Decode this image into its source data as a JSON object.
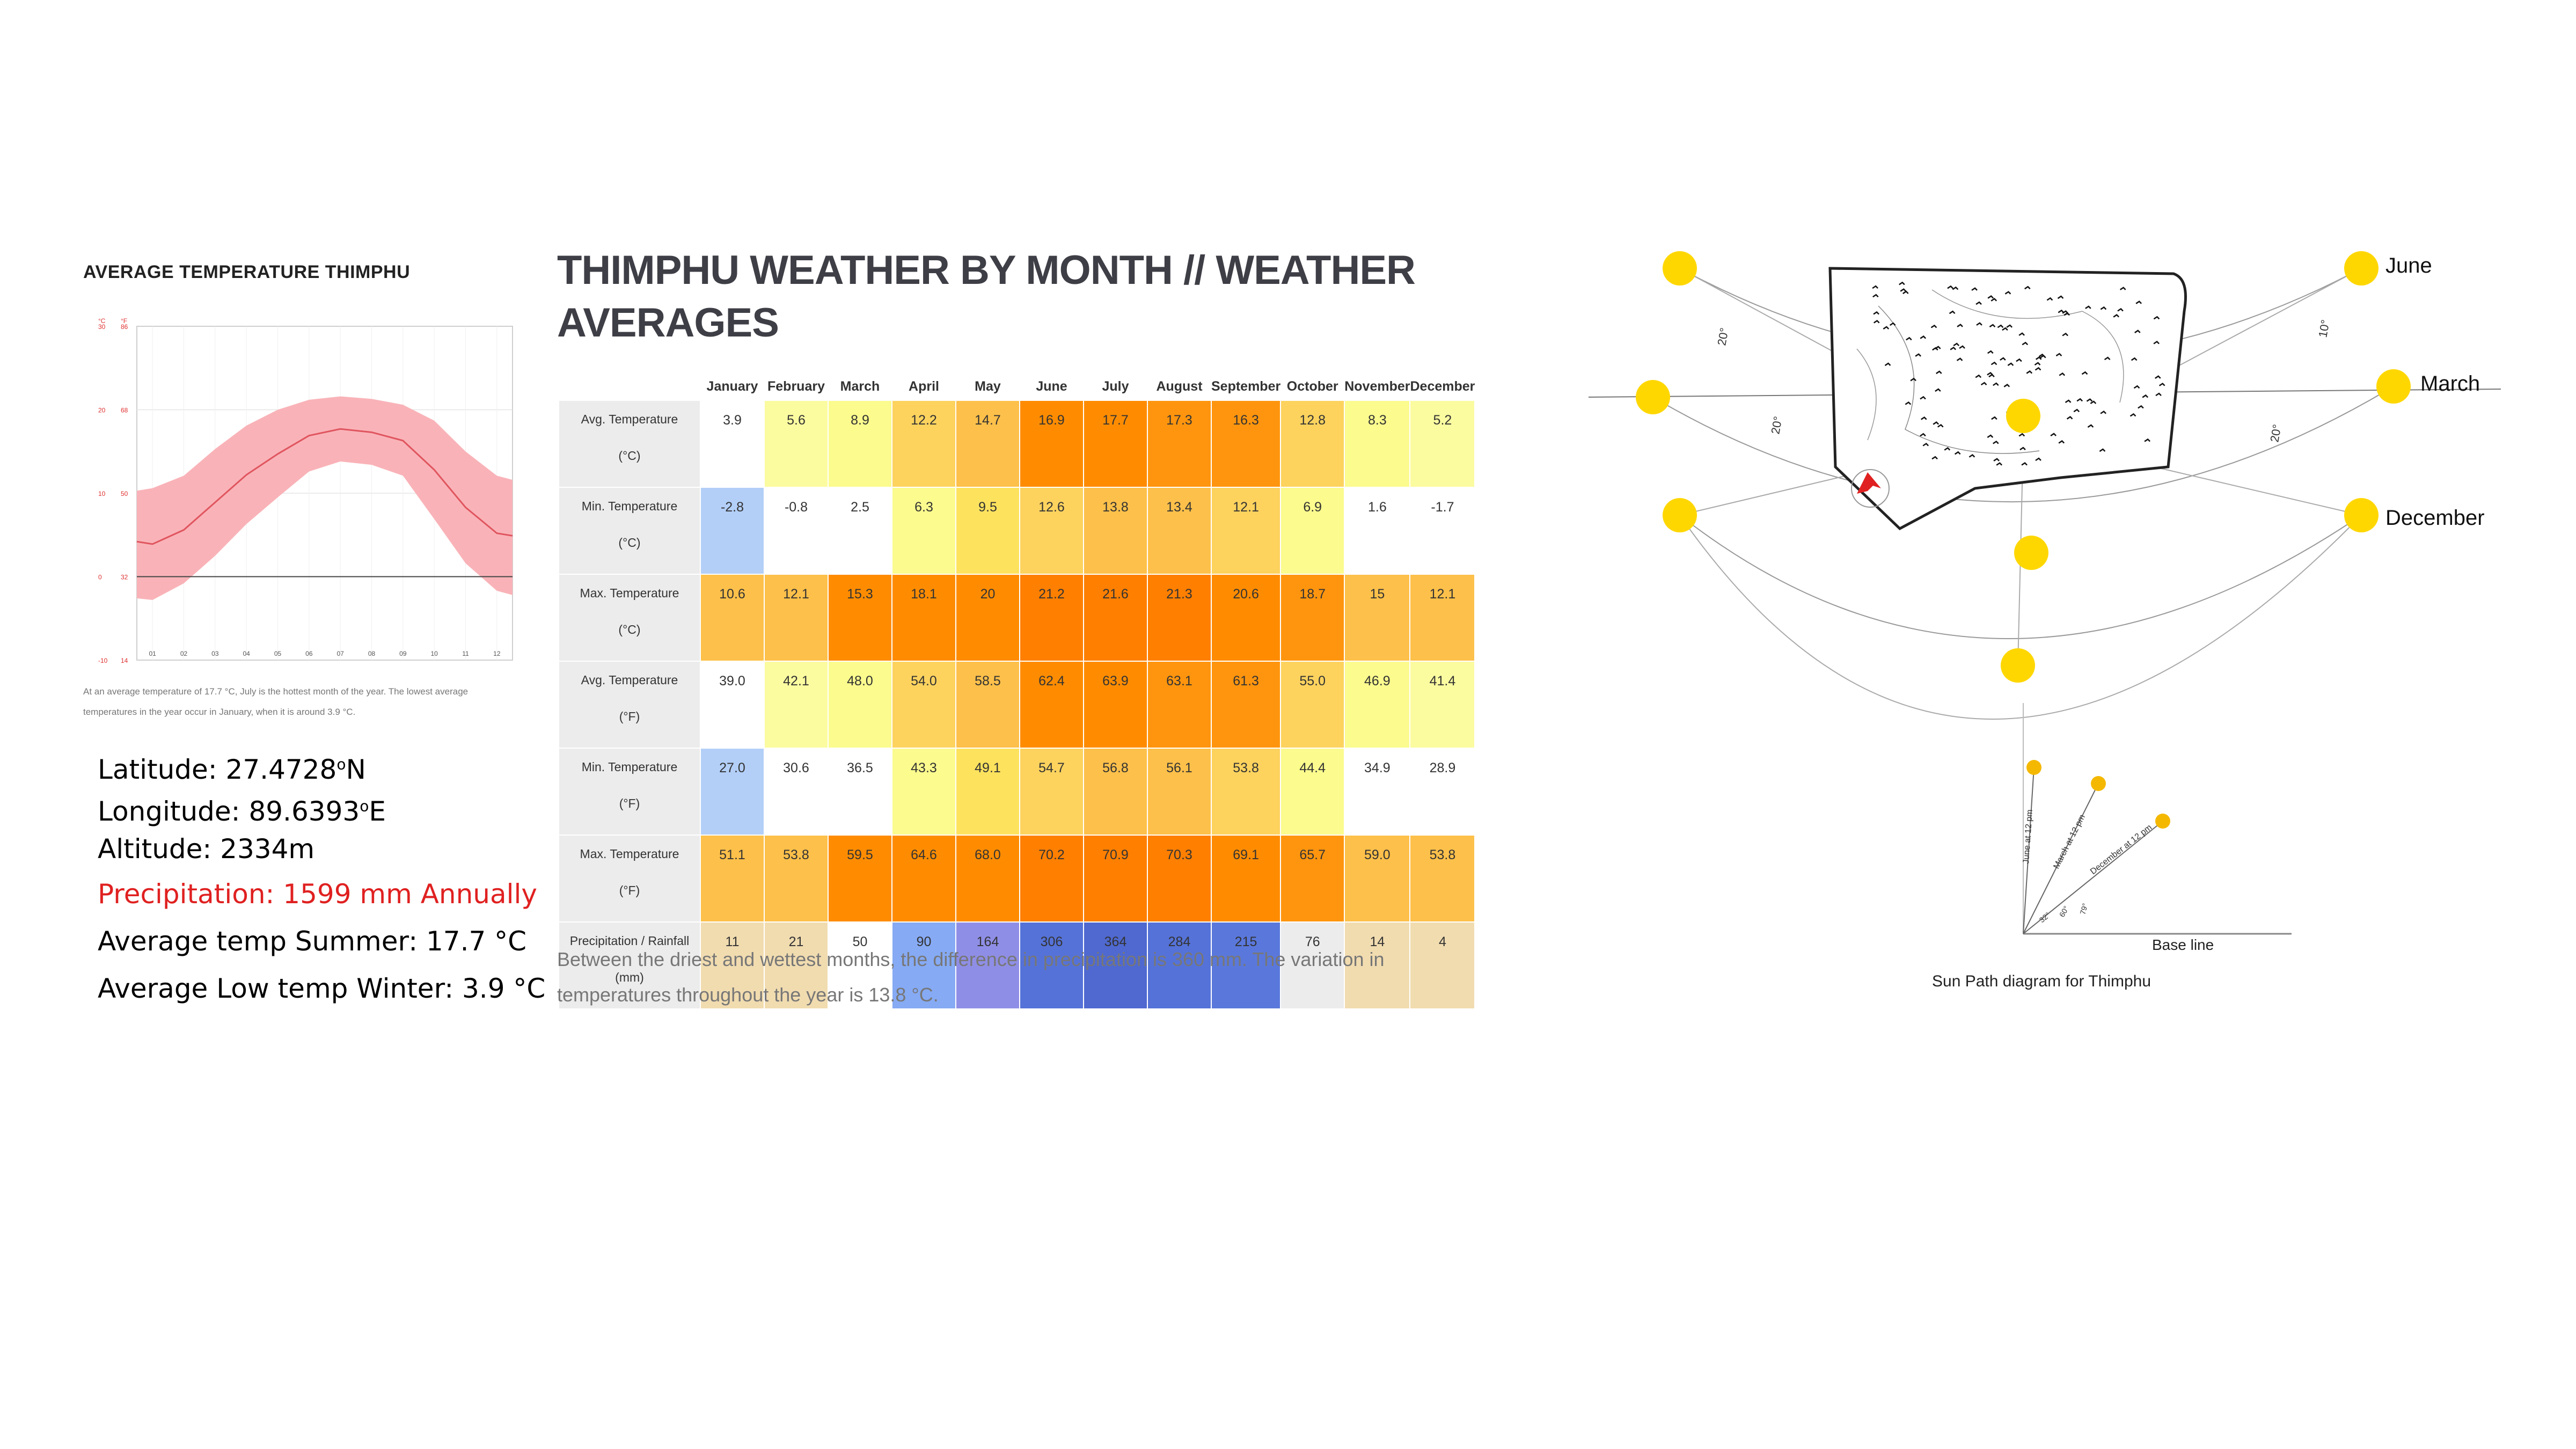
{
  "avg_chart": {
    "title": "AVERAGE TEMPERATURE THIMPHU",
    "left_axis_unit": "°C",
    "right_axis_unit": "°F",
    "y_ticks_c": [
      "30",
      "20",
      "10",
      "0",
      "-10"
    ],
    "y_ticks_f": [
      "86",
      "68",
      "50",
      "32",
      "14"
    ],
    "x_ticks": [
      "01",
      "02",
      "03",
      "04",
      "05",
      "06",
      "07",
      "08",
      "09",
      "10",
      "11",
      "12"
    ],
    "caption_line1": "At an average temperature of 17.7 °C, July is the hottest month of the year. The lowest average",
    "caption_line2": "temperatures in the year occur in January, when it is around 3.9 °C.",
    "band_color": "#f9b3b8",
    "line_color": "#e0555f"
  },
  "chart_data": {
    "type": "area",
    "x": [
      "01",
      "02",
      "03",
      "04",
      "05",
      "06",
      "07",
      "08",
      "09",
      "10",
      "11",
      "12"
    ],
    "ylim": [
      -10,
      30
    ],
    "series": [
      {
        "values": [
          3.9,
          5.6,
          8.9,
          12.2,
          14.7,
          16.9,
          17.7,
          17.3,
          16.3,
          12.8,
          8.3,
          5.2
        ]
      },
      {
        "values": [
          -2.8,
          -0.8,
          2.5,
          6.3,
          9.5,
          12.6,
          13.8,
          13.4,
          12.1,
          6.9,
          1.6,
          -1.7
        ]
      },
      {
        "values": [
          10.6,
          12.1,
          15.3,
          18.1,
          20,
          21.2,
          21.6,
          21.3,
          20.6,
          18.7,
          15,
          12.1
        ]
      }
    ]
  },
  "info": {
    "latitude_label": "Latitude:",
    "latitude_value": "27.4728",
    "longitude_label": "Longitude:",
    "longitude_value": "89.6393",
    "altitude_label": "Altitude:",
    "altitude_value": "2334m",
    "degree_sup": "o",
    "lat_dir": "N",
    "lon_dir": "E",
    "precip_label": "Precipitation:",
    "precip_value": "1599 mm Annually",
    "summer_label": "Average temp Summer:",
    "summer_value": "17.7 °C",
    "winter_label": "Average Low temp Winter:",
    "winter_value": "3.9 °C"
  },
  "table": {
    "title_line1": "THIMPHU WEATHER BY MONTH // WEATHER",
    "title_line2": "AVERAGES",
    "months": [
      "January",
      "February",
      "March",
      "April",
      "May",
      "June",
      "July",
      "August",
      "September",
      "October",
      "November",
      "December"
    ],
    "rows": [
      {
        "label1": "Avg. Temperature",
        "label2": "(°C)",
        "values": [
          "3.9",
          "5.6",
          "8.9",
          "12.2",
          "14.7",
          "16.9",
          "17.7",
          "17.3",
          "16.3",
          "12.8",
          "8.3",
          "5.2"
        ],
        "colors": [
          "#ffffff",
          "#fbfba0",
          "#fbfb8e",
          "#fdd35e",
          "#fdc04a",
          "#ff8c00",
          "#ff8c00",
          "#ff950e",
          "#ff950e",
          "#fdd35e",
          "#fbfb8e",
          "#fbfba0"
        ]
      },
      {
        "label1": "Min. Temperature",
        "label2": "(°C)",
        "values": [
          "-2.8",
          "-0.8",
          "2.5",
          "6.3",
          "9.5",
          "12.6",
          "13.8",
          "13.4",
          "12.1",
          "6.9",
          "1.6",
          "-1.7"
        ],
        "colors": [
          "#b3cff8",
          "#ffffff",
          "#ffffff",
          "#fbfb8e",
          "#fde25e",
          "#fdd35e",
          "#fdc04a",
          "#fdc04a",
          "#fdd35e",
          "#fbfb8e",
          "#ffffff",
          "#ffffff"
        ]
      },
      {
        "label1": "Max. Temperature",
        "label2": "(°C)",
        "values": [
          "10.6",
          "12.1",
          "15.3",
          "18.1",
          "20",
          "21.2",
          "21.6",
          "21.3",
          "20.6",
          "18.7",
          "15",
          "12.1"
        ],
        "colors": [
          "#fdc04a",
          "#fdc04a",
          "#ff8c00",
          "#ff8c00",
          "#ff8c00",
          "#ff7f00",
          "#ff7f00",
          "#ff7f00",
          "#ff8c00",
          "#ff950e",
          "#fdc04a",
          "#fdc04a"
        ]
      },
      {
        "label1": "Avg. Temperature",
        "label2": "(°F)",
        "values": [
          "39.0",
          "42.1",
          "48.0",
          "54.0",
          "58.5",
          "62.4",
          "63.9",
          "63.1",
          "61.3",
          "55.0",
          "46.9",
          "41.4"
        ],
        "colors": [
          "#ffffff",
          "#fbfba0",
          "#fbfb8e",
          "#fdd35e",
          "#fdc04a",
          "#ff8c00",
          "#ff8c00",
          "#ff950e",
          "#ff950e",
          "#fdd35e",
          "#fbfb8e",
          "#fbfba0"
        ]
      },
      {
        "label1": "Min. Temperature",
        "label2": "(°F)",
        "values": [
          "27.0",
          "30.6",
          "36.5",
          "43.3",
          "49.1",
          "54.7",
          "56.8",
          "56.1",
          "53.8",
          "44.4",
          "34.9",
          "28.9"
        ],
        "colors": [
          "#b3cff8",
          "#ffffff",
          "#ffffff",
          "#fbfb8e",
          "#fde25e",
          "#fdd35e",
          "#fdc04a",
          "#fdc04a",
          "#fdd35e",
          "#fbfb8e",
          "#ffffff",
          "#ffffff"
        ]
      },
      {
        "label1": "Max. Temperature",
        "label2": "(°F)",
        "values": [
          "51.1",
          "53.8",
          "59.5",
          "64.6",
          "68.0",
          "70.2",
          "70.9",
          "70.3",
          "69.1",
          "65.7",
          "59.0",
          "53.8"
        ],
        "colors": [
          "#fdc04a",
          "#fdc04a",
          "#ff8c00",
          "#ff8c00",
          "#ff8c00",
          "#ff7f00",
          "#ff7f00",
          "#ff7f00",
          "#ff8c00",
          "#ff950e",
          "#fdc04a",
          "#fdc04a"
        ]
      },
      {
        "label1": "Precipitation / Rainfall",
        "label2": "(mm)",
        "values": [
          "11",
          "21",
          "50",
          "90",
          "164",
          "306",
          "364",
          "284",
          "215",
          "76",
          "14",
          "4"
        ],
        "colors": [
          "#f1dcb0",
          "#f1dcb0",
          "#ffffff",
          "#86aaf4",
          "#8f8ee6",
          "#5572d8",
          "#4f69d0",
          "#5572d8",
          "#5a78dc",
          "#ececec",
          "#f1dcb0",
          "#f1dcb0"
        ]
      }
    ],
    "note_line1": "Between the driest and wettest months, the difference in precipitation is 360 mm. The variation in",
    "note_line2": "temperatures throughout the year is 13.8 °C."
  },
  "sunpath": {
    "label_june": "June",
    "label_march": "March",
    "label_december": "December",
    "angle_20": "20°",
    "angle_20b": "20°",
    "angle_20c": "20°",
    "angle_10": "10°",
    "inset_june": "June at 12 pm",
    "inset_march": "March at 12 pm",
    "inset_december": "December at 12 pm",
    "inset_a1": "32°",
    "inset_a2": "60°",
    "inset_a3": "79°",
    "baseline": "Base line",
    "caption": "Sun Path diagram for Thimphu",
    "sun_color": "#ffd700"
  }
}
